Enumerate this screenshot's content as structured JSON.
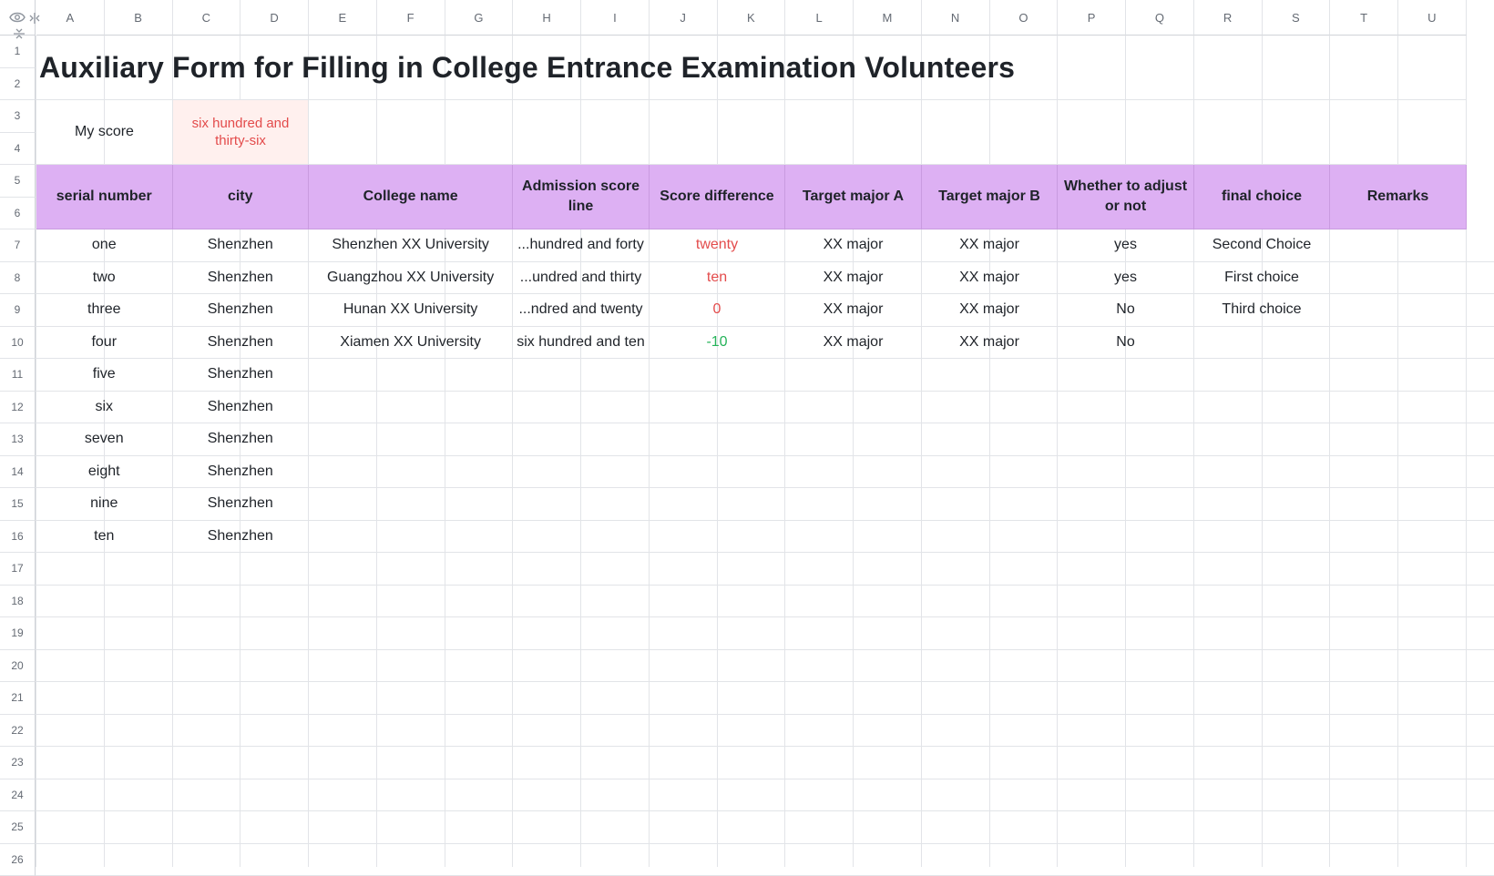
{
  "columns": [
    "A",
    "B",
    "C",
    "D",
    "E",
    "F",
    "G",
    "H",
    "I",
    "J",
    "K",
    "L",
    "M",
    "N",
    "O",
    "P",
    "Q",
    "R",
    "S",
    "T",
    "U"
  ],
  "rows": [
    "1",
    "2",
    "3",
    "4",
    "5",
    "6",
    "7",
    "8",
    "9",
    "10",
    "11",
    "12",
    "13",
    "14",
    "15",
    "16",
    "17",
    "18",
    "19",
    "20",
    "21",
    "22",
    "23",
    "24",
    "25",
    "26"
  ],
  "title": "Auxiliary Form for Filling in College Entrance Examination Volunteers",
  "my_score": {
    "label": "My score",
    "value": "six hundred and thirty-six"
  },
  "headers": [
    "serial number",
    "city",
    "College name",
    "Admission score line",
    "Score difference",
    "Target major A",
    "Target major B",
    "Whether to adjust or not",
    "final choice",
    "Remarks"
  ],
  "data_rows": [
    {
      "serial": "one",
      "city": "Shenzhen",
      "college": "Shenzhen XX University",
      "line": "...hundred and forty",
      "diff": "twenty",
      "diff_color": "#e34b4b",
      "major_a": "XX major",
      "major_b": "XX major",
      "adjust": "yes",
      "final": "Second Choice",
      "remarks": ""
    },
    {
      "serial": "two",
      "city": "Shenzhen",
      "college": "Guangzhou XX University",
      "line": "...undred and thirty",
      "diff": "ten",
      "diff_color": "#e34b4b",
      "major_a": "XX major",
      "major_b": "XX major",
      "adjust": "yes",
      "final": "First choice",
      "remarks": ""
    },
    {
      "serial": "three",
      "city": "Shenzhen",
      "college": "Hunan XX University",
      "line": "...ndred and twenty",
      "diff": "0",
      "diff_color": "#e34b4b",
      "major_a": "XX major",
      "major_b": "XX major",
      "adjust": "No",
      "final": "Third choice",
      "remarks": ""
    },
    {
      "serial": "four",
      "city": "Shenzhen",
      "college": "Xiamen XX University",
      "line": "six hundred and ten",
      "diff": "-10",
      "diff_color": "#26b35a",
      "major_a": "XX major",
      "major_b": "XX major",
      "adjust": "No",
      "final": "",
      "remarks": ""
    },
    {
      "serial": "five",
      "city": "Shenzhen"
    },
    {
      "serial": "six",
      "city": "Shenzhen"
    },
    {
      "serial": "seven",
      "city": "Shenzhen"
    },
    {
      "serial": "eight",
      "city": "Shenzhen"
    },
    {
      "serial": "nine",
      "city": "Shenzhen"
    },
    {
      "serial": "ten",
      "city": "Shenzhen"
    }
  ],
  "colors": {
    "header_bg": "#ddb0f3",
    "score_bg": "#fff0ee",
    "red": "#e34b4b",
    "green": "#26b35a"
  },
  "icons": {
    "toolbar": [
      "eye-icon",
      "freeze-columns-icon",
      "freeze-rows-icon"
    ]
  }
}
